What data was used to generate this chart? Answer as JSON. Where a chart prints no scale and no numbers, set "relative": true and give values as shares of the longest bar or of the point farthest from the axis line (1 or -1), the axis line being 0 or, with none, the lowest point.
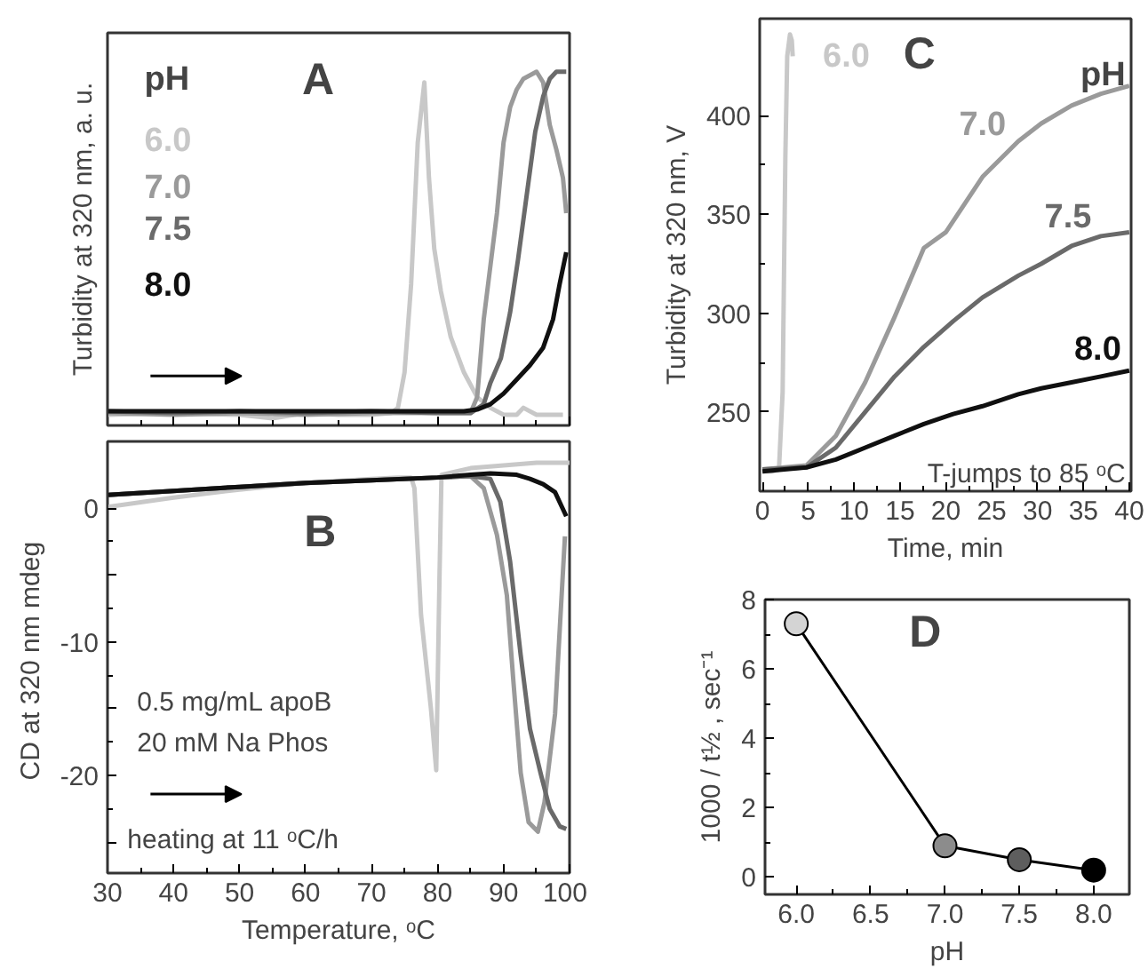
{
  "chart_data": [
    {
      "type": "line",
      "title": "A",
      "ylabel": "Turbidity at 320 nm, a. u.",
      "legend_title": "pH",
      "relative": true,
      "tick_labels": false,
      "xlim": [
        30,
        100
      ],
      "xticks": [
        30,
        40,
        50,
        60,
        70,
        80,
        90,
        100
      ],
      "series": [
        {
          "name": "6.0",
          "color": "#c8c8c8",
          "x": [
            30,
            40,
            50,
            55,
            60,
            65,
            70,
            73,
            74,
            75,
            76,
            77,
            78,
            78.7,
            79.5,
            80.5,
            82,
            84,
            86,
            88,
            90,
            92,
            93,
            95,
            99
          ],
          "values": [
            0.03,
            0.035,
            0.03,
            0.02,
            0.035,
            0.03,
            0.03,
            0.035,
            0.05,
            0.15,
            0.4,
            0.8,
            0.97,
            0.7,
            0.5,
            0.38,
            0.25,
            0.15,
            0.08,
            0.05,
            0.03,
            0.03,
            0.05,
            0.03,
            0.03
          ]
        },
        {
          "name": "7.0",
          "color": "#9a9a9a",
          "x": [
            30,
            40,
            50,
            60,
            70,
            80,
            85,
            86,
            87,
            88,
            89,
            90,
            91,
            92,
            93,
            94,
            95,
            96,
            97,
            98,
            99,
            99.5
          ],
          "values": [
            0.035,
            0.03,
            0.035,
            0.03,
            0.035,
            0.035,
            0.035,
            0.08,
            0.3,
            0.45,
            0.6,
            0.8,
            0.9,
            0.95,
            0.98,
            0.99,
            1.0,
            0.97,
            0.85,
            0.78,
            0.7,
            0.6
          ]
        },
        {
          "name": "7.5",
          "color": "#6a6a6a",
          "x": [
            30,
            40,
            50,
            60,
            70,
            80,
            85,
            87,
            88,
            89.6,
            91,
            92.2,
            93.5,
            94.8,
            96,
            97,
            98,
            99.5
          ],
          "values": [
            0.04,
            0.035,
            0.04,
            0.035,
            0.04,
            0.035,
            0.035,
            0.06,
            0.12,
            0.19,
            0.32,
            0.47,
            0.65,
            0.83,
            0.93,
            0.98,
            1.0,
            1.0
          ]
        },
        {
          "name": "8.0",
          "color": "#101010",
          "x": [
            30,
            40,
            50,
            60,
            70,
            80,
            84,
            86,
            88,
            90,
            92,
            94,
            96,
            97.5,
            98.5,
            99.5
          ],
          "values": [
            0.04,
            0.04,
            0.04,
            0.04,
            0.04,
            0.04,
            0.04,
            0.045,
            0.06,
            0.09,
            0.13,
            0.17,
            0.22,
            0.3,
            0.4,
            0.49
          ]
        }
      ]
    },
    {
      "type": "line",
      "title": "B",
      "xlabel": "Temperature, ᵒC",
      "ylabel": "CD at 320 nm  mdeg",
      "xlim": [
        30,
        100
      ],
      "xticks": [
        30,
        40,
        50,
        60,
        70,
        80,
        90,
        100
      ],
      "ylim": [
        -27.3,
        5
      ],
      "yticks": [
        {
          "value": -25,
          "label": null
        },
        -20,
        {
          "value": -15,
          "label": null
        },
        -10,
        {
          "value": -5,
          "label": null
        },
        0
      ],
      "annotations": [
        "0.5 mg/mL apoB",
        "20 mM Na Phos",
        "heating at 11 ᵒC/h"
      ],
      "series": [
        {
          "color": "#c8c8c8",
          "x": [
            30,
            40,
            50,
            60,
            70,
            74,
            76,
            76.5,
            77.5,
            79,
            79.8,
            80.3,
            80.6,
            85,
            90,
            95,
            100
          ],
          "values": [
            0.1,
            0.8,
            1.4,
            1.9,
            2.2,
            2.3,
            2.3,
            1.5,
            -8,
            -15,
            -19.6,
            -5,
            2.5,
            3.0,
            3.2,
            3.4,
            3.4
          ]
        },
        {
          "color": "#9a9a9a",
          "x": [
            30,
            40,
            50,
            60,
            70,
            80,
            85,
            87,
            89,
            90.5,
            91.5,
            92.6,
            93.8,
            95.2,
            96.2,
            97.8,
            99.3
          ],
          "values": [
            1.0,
            1.3,
            1.6,
            1.9,
            2.1,
            2.3,
            2.4,
            1.5,
            -2,
            -6.5,
            -13,
            -19.8,
            -23.5,
            -24.2,
            -22,
            -15.4,
            -2.1
          ]
        },
        {
          "color": "#6a6a6a",
          "x": [
            30,
            40,
            50,
            60,
            70,
            80,
            85,
            88,
            89.5,
            91,
            92.6,
            94,
            95.6,
            97,
            98.5,
            99.5
          ],
          "values": [
            1.0,
            1.3,
            1.6,
            1.9,
            2.1,
            2.3,
            2.4,
            2.2,
            0.5,
            -4,
            -11,
            -16.5,
            -19.8,
            -22.5,
            -23.8,
            -24
          ]
        },
        {
          "color": "#101010",
          "x": [
            30,
            40,
            50,
            60,
            70,
            80,
            85,
            88,
            92,
            94,
            96,
            97.8,
            99.5
          ],
          "values": [
            1.0,
            1.3,
            1.6,
            1.9,
            2.1,
            2.3,
            2.5,
            2.6,
            2.5,
            2.2,
            1.8,
            1.2,
            -0.6
          ]
        }
      ]
    },
    {
      "type": "line",
      "title": "C",
      "xlabel": "Time, min",
      "ylabel": "Turbidity at 320 nm, V",
      "legend_title": "pH",
      "xlim": [
        -0.3,
        40.2
      ],
      "xticks": [
        0,
        5,
        10,
        15,
        20,
        25,
        30,
        35,
        40
      ],
      "ylim": [
        210,
        449
      ],
      "yticks": [
        250,
        300,
        350,
        400
      ],
      "annotations": [
        "T-jumps to 85 ᵒC"
      ],
      "series": [
        {
          "name": "6.0",
          "color": "#c8c8c8",
          "x": [
            0,
            1,
            1.8,
            2.2,
            2.5,
            2.7,
            3,
            3.2,
            3.3
          ],
          "values": [
            220,
            220,
            221,
            260,
            380,
            430,
            441,
            438,
            430
          ]
        },
        {
          "name": "7.0",
          "color": "#9a9a9a",
          "x": [
            0,
            4.8,
            8,
            11.2,
            14.4,
            17.6,
            20,
            24,
            27.9,
            30.4,
            33.7,
            36.9,
            40
          ],
          "values": [
            221,
            223,
            238,
            265,
            298,
            333,
            341,
            369,
            387,
            396,
            405,
            411,
            415
          ]
        },
        {
          "name": "7.5",
          "color": "#6a6a6a",
          "x": [
            0,
            4.8,
            8,
            11.2,
            14.4,
            17.6,
            20.8,
            24,
            27.9,
            30.4,
            33.7,
            36.9,
            40
          ],
          "values": [
            221,
            222,
            232,
            250,
            268,
            283,
            296,
            308,
            319,
            325,
            334,
            339,
            341
          ]
        },
        {
          "name": "8.0",
          "color": "#101010",
          "x": [
            0,
            4.8,
            8,
            11.2,
            14.4,
            17.6,
            20.8,
            24,
            27.9,
            30.4,
            33.7,
            36.9,
            40
          ],
          "values": [
            220,
            222,
            226,
            232,
            238,
            244,
            249,
            253,
            259,
            262,
            265,
            268,
            271
          ]
        }
      ]
    },
    {
      "type": "line",
      "title": "D",
      "xlabel": "pH",
      "ylabel": "1000 / t½ , sec⁻¹",
      "marker": "circle",
      "xlim": [
        5.79,
        8.24
      ],
      "xticks": [
        {
          "value": 6,
          "label": "6.0"
        },
        {
          "value": 6.5,
          "label": "6.5"
        },
        {
          "value": 7,
          "label": "7.0"
        },
        {
          "value": 7.5,
          "label": "7.5"
        },
        {
          "value": 8,
          "label": "8.0"
        }
      ],
      "ylim": [
        -0.5,
        8
      ],
      "yticks": [
        0,
        2,
        4,
        6,
        8
      ],
      "series": [
        {
          "color": "#000000",
          "colors": [
            "#d4d4d4",
            "#8c8c8c",
            "#5e5e5e",
            "#000000"
          ],
          "x": [
            6.0,
            7.0,
            7.5,
            8.0
          ],
          "values": [
            7.3,
            0.9,
            0.5,
            0.2
          ]
        }
      ]
    }
  ]
}
